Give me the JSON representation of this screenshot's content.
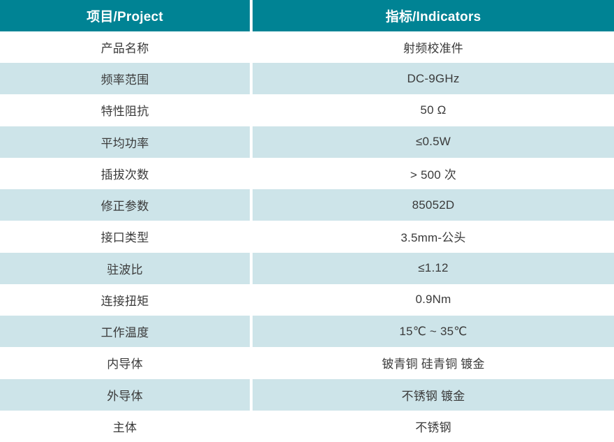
{
  "table": {
    "columns": [
      {
        "label": "项目/Project"
      },
      {
        "label": "指标/Indicators"
      }
    ],
    "rows": [
      {
        "project": "产品名称",
        "indicator": "射频校准件"
      },
      {
        "project": "频率范围",
        "indicator": "DC-9GHz"
      },
      {
        "project": "特性阻抗",
        "indicator": "50 Ω"
      },
      {
        "project": "平均功率",
        "indicator": "≤0.5W"
      },
      {
        "project": "插拔次数",
        "indicator": "> 500 次"
      },
      {
        "project": "修正参数",
        "indicator": "85052D"
      },
      {
        "project": "接口类型",
        "indicator": "3.5mm-公头"
      },
      {
        "project": "驻波比",
        "indicator": "≤1.12"
      },
      {
        "project": "连接扭矩",
        "indicator": "0.9Nm"
      },
      {
        "project": "工作温度",
        "indicator": "15℃ ~ 35℃"
      },
      {
        "project": "内导体",
        "indicator": "铍青铜 硅青铜 镀金"
      },
      {
        "project": "外导体",
        "indicator": "不锈钢 镀金"
      },
      {
        "project": "主体",
        "indicator": "不锈钢"
      }
    ],
    "colors": {
      "header_bg": "#008394",
      "header_text": "#ffffff",
      "row_bg": "#ffffff",
      "row_alt_bg": "#cde4e9",
      "text": "#3a3a3a"
    }
  }
}
